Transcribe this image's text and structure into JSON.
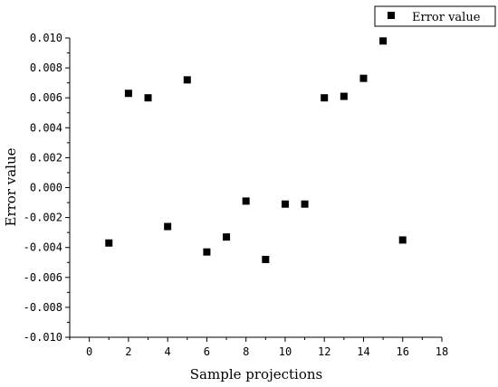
{
  "chart_data": {
    "type": "scatter",
    "xlabel": "Sample projections",
    "ylabel": "Error value",
    "xlim": [
      -1,
      18
    ],
    "ylim": [
      -0.01,
      0.01
    ],
    "xticks": [
      0,
      2,
      4,
      6,
      8,
      10,
      12,
      14,
      16,
      18
    ],
    "xtick_labels": [
      "0",
      "2",
      "4",
      "6",
      "8",
      "10",
      "12",
      "14",
      "16",
      "18"
    ],
    "yticks": [
      -0.01,
      -0.008,
      -0.006,
      -0.004,
      -0.002,
      0.0,
      0.002,
      0.004,
      0.006,
      0.008,
      0.01
    ],
    "ytick_labels": [
      "-0.010",
      "-0.008",
      "-0.006",
      "-0.004",
      "-0.002",
      "0.000",
      "0.002",
      "0.004",
      "0.006",
      "0.008",
      "0.010"
    ],
    "grid": false,
    "legend_position": "top-right",
    "series": [
      {
        "name": "Error value",
        "marker": "square",
        "color": "#000000",
        "x": [
          1,
          2,
          3,
          4,
          5,
          6,
          7,
          8,
          9,
          10,
          11,
          12,
          13,
          14,
          15,
          16
        ],
        "y": [
          -0.0037,
          0.0063,
          0.006,
          -0.0026,
          0.0072,
          -0.0043,
          -0.0033,
          -0.0009,
          -0.0048,
          -0.0011,
          -0.0011,
          0.006,
          0.0061,
          0.0073,
          0.0098,
          -0.0035
        ]
      }
    ]
  }
}
